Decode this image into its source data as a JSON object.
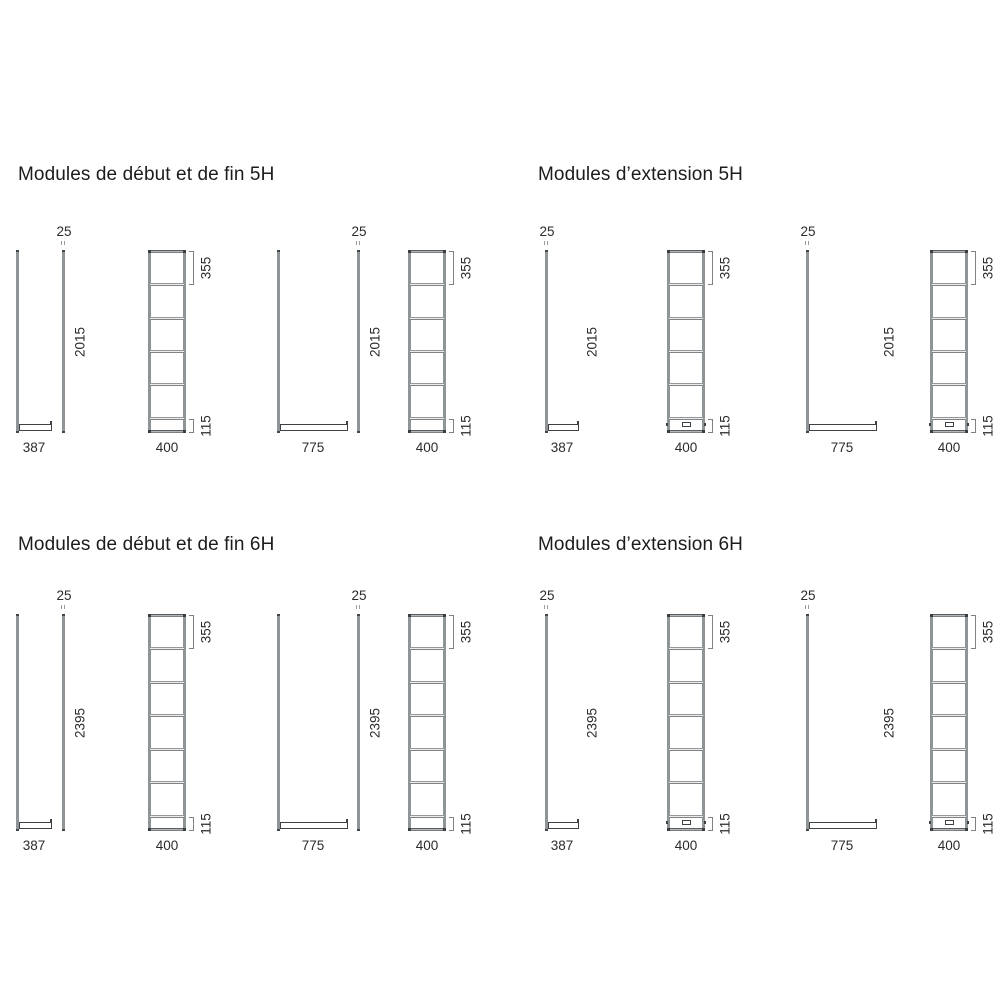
{
  "colors": {
    "background": "#ffffff",
    "text": "#1b1c1e",
    "dimension_text": "#2a2b2d",
    "outline": "#3e4245",
    "panel_gray": "#8f9497"
  },
  "quadrants": [
    {
      "id": "start-end-5h",
      "variant": "start-end",
      "row": "top",
      "col": "left",
      "title": "Modules de début et de fin 5H",
      "shelf_count": 5,
      "dims": {
        "panel_thickness": "25",
        "module_height": "2015",
        "shelf_opening": "355",
        "base_height": "115",
        "module_width": "400",
        "depth_narrow": "387",
        "depth_wide": "775"
      }
    },
    {
      "id": "extension-5h",
      "variant": "extension",
      "row": "top",
      "col": "right",
      "title": "Modules d’extension 5H",
      "shelf_count": 5,
      "dims": {
        "panel_thickness": "25",
        "module_height": "2015",
        "shelf_opening": "355",
        "base_height": "115",
        "module_width": "400",
        "depth_narrow": "387",
        "depth_wide": "775"
      }
    },
    {
      "id": "start-end-6h",
      "variant": "start-end",
      "row": "bottom",
      "col": "left",
      "title": "Modules de début et de fin 6H",
      "shelf_count": 6,
      "dims": {
        "panel_thickness": "25",
        "module_height": "2395",
        "shelf_opening": "355",
        "base_height": "115",
        "module_width": "400",
        "depth_narrow": "387",
        "depth_wide": "775"
      }
    },
    {
      "id": "extension-6h",
      "variant": "extension",
      "row": "bottom",
      "col": "right",
      "title": "Modules d’extension 6H",
      "shelf_count": 6,
      "dims": {
        "panel_thickness": "25",
        "module_height": "2395",
        "shelf_opening": "355",
        "base_height": "115",
        "module_width": "400",
        "depth_narrow": "387",
        "depth_wide": "775"
      }
    }
  ]
}
